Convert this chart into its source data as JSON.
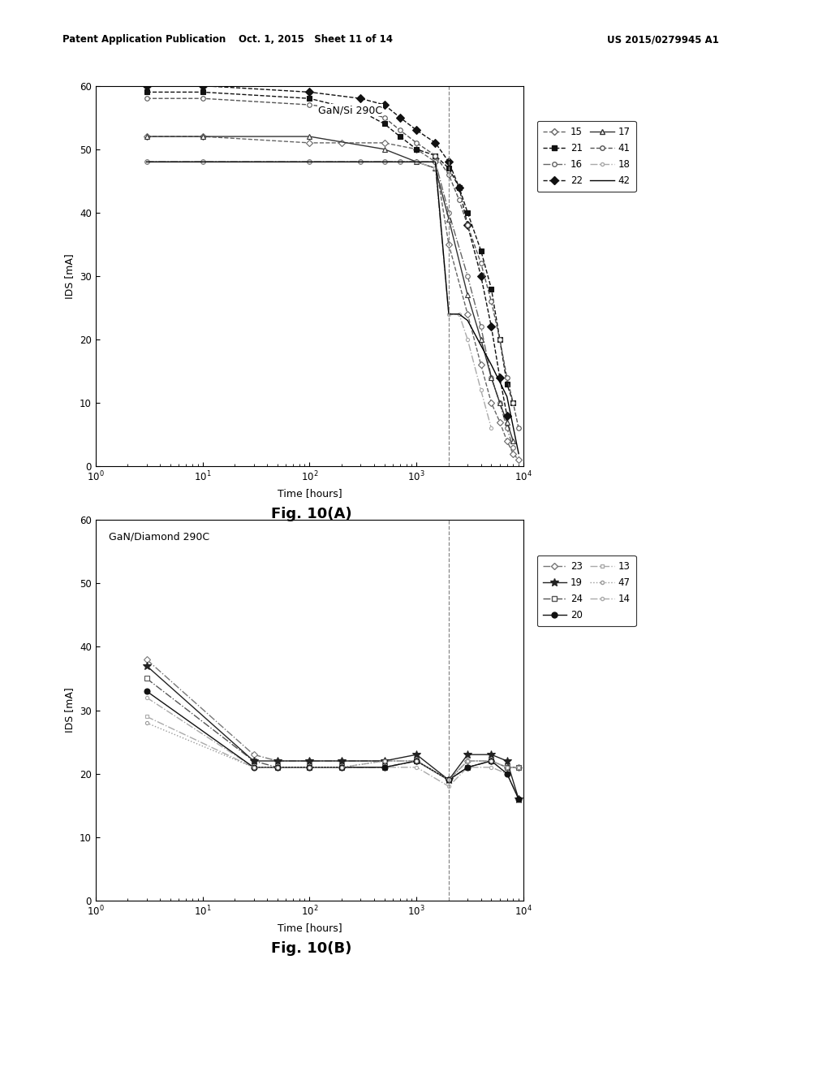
{
  "header_left": "Patent Application Publication",
  "header_mid": "Oct. 1, 2015   Sheet 11 of 14",
  "header_right": "US 2015/0279945 A1",
  "fig_a_title": "GaN/Si 290C",
  "fig_b_title": "GaN/Diamond 290C",
  "fig_caption_a": "Fig. 10(A)",
  "fig_caption_b": "Fig. 10(B)",
  "ylabel": "IDS [mA]",
  "xlabel": "Time [hours]",
  "ylim": [
    0,
    60
  ],
  "vline_a": 2000,
  "vline_b": 2000,
  "series_a": {
    "15": {
      "x": [
        3,
        10,
        100,
        200,
        500,
        1000,
        1500,
        2000,
        3000,
        4000,
        5000,
        6000,
        7000,
        8000,
        9000
      ],
      "y": [
        52,
        52,
        51,
        51,
        51,
        50,
        48,
        35,
        24,
        16,
        10,
        7,
        4,
        2,
        1
      ],
      "style": "--",
      "marker": "D",
      "markersize": 4,
      "color": "#666666",
      "mfc": "white"
    },
    "16": {
      "x": [
        3,
        10,
        100,
        300,
        500,
        700,
        1000,
        1500,
        2000,
        3000,
        4000,
        5000,
        6000,
        7000,
        8000
      ],
      "y": [
        48,
        48,
        48,
        48,
        48,
        48,
        48,
        48,
        40,
        30,
        22,
        14,
        10,
        6,
        3
      ],
      "style": "-.",
      "marker": "o",
      "markersize": 4,
      "color": "#666666",
      "mfc": "white"
    },
    "17": {
      "x": [
        3,
        10,
        100,
        500,
        1000,
        1500,
        2000,
        3000,
        4000,
        5000,
        6000,
        7000,
        8000
      ],
      "y": [
        52,
        52,
        52,
        50,
        48,
        47,
        39,
        27,
        20,
        14,
        10,
        7,
        4
      ],
      "style": "-",
      "marker": "^",
      "markersize": 4,
      "color": "#333333",
      "mfc": "white"
    },
    "18": {
      "x": [
        3,
        10,
        100,
        300,
        500,
        700,
        1000,
        1500,
        2000,
        2500,
        3000,
        4000,
        5000
      ],
      "y": [
        48,
        48,
        48,
        48,
        48,
        48,
        48,
        47,
        24,
        24,
        20,
        12,
        6
      ],
      "style": "-.",
      "marker": "o",
      "markersize": 3,
      "color": "#aaaaaa",
      "mfc": "white"
    },
    "21": {
      "x": [
        3,
        10,
        100,
        300,
        500,
        700,
        1000,
        1500,
        2000,
        2500,
        3000,
        4000,
        5000,
        6000,
        7000,
        8000
      ],
      "y": [
        59,
        59,
        58,
        56,
        54,
        52,
        50,
        49,
        47,
        44,
        40,
        34,
        28,
        20,
        13,
        10
      ],
      "style": "--",
      "marker": "s",
      "markersize": 5,
      "color": "#111111",
      "mfc": "#111111"
    },
    "22": {
      "x": [
        3,
        10,
        100,
        300,
        500,
        700,
        1000,
        1500,
        2000,
        2500,
        3000,
        4000,
        5000,
        6000,
        7000
      ],
      "y": [
        60,
        60,
        59,
        58,
        57,
        55,
        53,
        51,
        48,
        44,
        38,
        30,
        22,
        14,
        8
      ],
      "style": "--",
      "marker": "D",
      "markersize": 5,
      "color": "#111111",
      "mfc": "#111111"
    },
    "41": {
      "x": [
        3,
        10,
        100,
        300,
        500,
        700,
        1000,
        1500,
        2000,
        2500,
        3000,
        4000,
        5000,
        6000,
        7000,
        8000,
        9000
      ],
      "y": [
        58,
        58,
        57,
        56,
        55,
        53,
        51,
        49,
        46,
        42,
        38,
        32,
        26,
        20,
        14,
        10,
        6
      ],
      "style": "--",
      "marker": "o",
      "markersize": 4,
      "color": "#555555",
      "mfc": "white"
    },
    "42": {
      "x": [
        3,
        10,
        100,
        300,
        500,
        700,
        1000,
        1500,
        2000,
        2500,
        3000,
        5000,
        7000,
        9000
      ],
      "y": [
        48,
        48,
        48,
        48,
        48,
        48,
        48,
        48,
        24,
        24,
        23,
        16,
        11,
        2
      ],
      "style": "-",
      "marker": null,
      "markersize": 0,
      "color": "#000000",
      "mfc": "#000000"
    }
  },
  "series_b": {
    "23": {
      "x": [
        3,
        30,
        50,
        100,
        200,
        500,
        1000,
        2000,
        3000,
        5000,
        7000,
        9000
      ],
      "y": [
        38,
        23,
        22,
        22,
        22,
        22,
        22,
        19,
        22,
        22,
        21,
        21
      ],
      "style": "-.",
      "marker": "D",
      "markersize": 4,
      "color": "#777777",
      "mfc": "white"
    },
    "24": {
      "x": [
        3,
        30,
        50,
        100,
        200,
        500,
        1000,
        2000,
        3000,
        5000,
        7000,
        9000
      ],
      "y": [
        35,
        22,
        21,
        21,
        21,
        21,
        22,
        19,
        21,
        22,
        21,
        21
      ],
      "style": "-.",
      "marker": "s",
      "markersize": 4,
      "color": "#555555",
      "mfc": "white"
    },
    "13": {
      "x": [
        3,
        30,
        50,
        100,
        200,
        500,
        1000,
        2000,
        3000,
        5000,
        7000,
        9000
      ],
      "y": [
        29,
        21,
        21,
        21,
        21,
        22,
        22,
        19,
        22,
        22,
        21,
        21
      ],
      "style": "-.",
      "marker": "s",
      "markersize": 3,
      "color": "#aaaaaa",
      "mfc": "white"
    },
    "14": {
      "x": [
        3,
        30,
        50,
        100,
        200,
        500,
        1000,
        2000,
        3000,
        5000,
        7000,
        9000
      ],
      "y": [
        32,
        21,
        21,
        21,
        21,
        21,
        21,
        18,
        21,
        21,
        20,
        16
      ],
      "style": "-.",
      "marker": "o",
      "markersize": 3,
      "color": "#aaaaaa",
      "mfc": "white"
    },
    "19": {
      "x": [
        3,
        30,
        50,
        100,
        200,
        500,
        1000,
        2000,
        3000,
        5000,
        7000,
        9000
      ],
      "y": [
        37,
        22,
        22,
        22,
        22,
        22,
        23,
        19,
        23,
        23,
        22,
        16
      ],
      "style": "-",
      "marker": "*",
      "markersize": 7,
      "color": "#222222",
      "mfc": "#222222"
    },
    "20": {
      "x": [
        3,
        30,
        50,
        100,
        200,
        500,
        1000,
        2000,
        3000,
        5000,
        7000,
        9000
      ],
      "y": [
        33,
        21,
        21,
        21,
        21,
        21,
        22,
        19,
        21,
        22,
        20,
        16
      ],
      "style": "-",
      "marker": "o",
      "markersize": 5,
      "color": "#111111",
      "mfc": "#111111"
    },
    "47": {
      "x": [
        3,
        30,
        50,
        100,
        200,
        500,
        1000,
        2000,
        3000,
        5000,
        7000,
        9000
      ],
      "y": [
        28,
        21,
        21,
        21,
        21,
        22,
        22,
        19,
        22,
        22,
        21,
        21
      ],
      "style": ":",
      "marker": "o",
      "markersize": 3,
      "color": "#999999",
      "mfc": "white"
    }
  },
  "legend_a_col1": [
    "15",
    "16",
    "17",
    "18"
  ],
  "legend_a_col2": [
    "21",
    "22",
    "41",
    "42"
  ],
  "legend_b_col1": [
    "23",
    "24",
    "13",
    "14"
  ],
  "legend_b_col2": [
    "19",
    "20",
    "47"
  ],
  "background_color": "#ffffff"
}
